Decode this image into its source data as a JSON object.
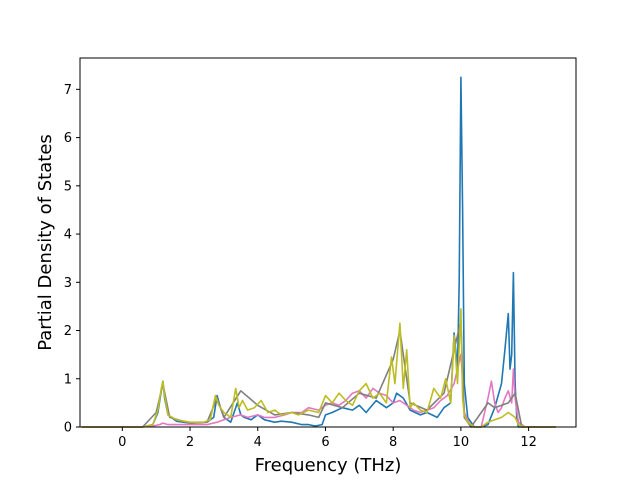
{
  "chart_data": {
    "type": "line",
    "title": "",
    "xlabel": "Frequency (THz)",
    "ylabel": "Partial Density of States",
    "xlim": [
      -1.25,
      13.4
    ],
    "ylim": [
      0,
      7.65
    ],
    "xticks": [
      0,
      2,
      4,
      6,
      8,
      10,
      12
    ],
    "yticks": [
      0,
      1,
      2,
      3,
      4,
      5,
      6,
      7
    ],
    "grid": false,
    "legend": "none",
    "series": [
      {
        "color": "#1f77b4",
        "x": [
          -1.2,
          0.6,
          0.9,
          1.05,
          1.15,
          1.2,
          1.25,
          1.35,
          1.6,
          2.0,
          2.5,
          2.7,
          2.8,
          2.9,
          3.0,
          3.2,
          3.4,
          3.5,
          3.6,
          3.8,
          4.0,
          4.2,
          4.5,
          4.7,
          5.0,
          5.3,
          5.5,
          5.7,
          5.9,
          6.0,
          6.2,
          6.5,
          6.8,
          7.0,
          7.2,
          7.5,
          7.8,
          8.0,
          8.1,
          8.3,
          8.5,
          8.8,
          9.0,
          9.3,
          9.5,
          9.7,
          9.8,
          9.9,
          9.95,
          10.0,
          10.05,
          10.1,
          10.2,
          10.4,
          10.6,
          10.8,
          11.0,
          11.2,
          11.3,
          11.4,
          11.45,
          11.5,
          11.55,
          11.6,
          11.65,
          11.7,
          11.9,
          12.8
        ],
        "y": [
          0,
          0,
          0.05,
          0.3,
          0.75,
          0.95,
          0.6,
          0.25,
          0.12,
          0.08,
          0.1,
          0.2,
          0.65,
          0.4,
          0.2,
          0.1,
          0.5,
          0.25,
          0.2,
          0.15,
          0.25,
          0.15,
          0.1,
          0.12,
          0.1,
          0.05,
          0.05,
          0.02,
          0.05,
          0.25,
          0.3,
          0.4,
          0.35,
          0.45,
          0.3,
          0.55,
          0.4,
          0.5,
          0.7,
          0.6,
          0.35,
          0.25,
          0.3,
          0.2,
          0.4,
          0.5,
          1.95,
          1.2,
          3.0,
          7.25,
          4.5,
          0.9,
          0.2,
          0,
          0,
          0.05,
          0.4,
          0.9,
          1.6,
          2.35,
          1.2,
          1.5,
          3.2,
          0.9,
          0.2,
          0,
          0,
          0
        ]
      },
      {
        "color": "#e377c2",
        "x": [
          -1.2,
          0.6,
          0.9,
          1.1,
          1.2,
          1.35,
          1.6,
          2.0,
          2.5,
          2.8,
          3.0,
          3.2,
          3.5,
          3.7,
          4.0,
          4.2,
          4.5,
          4.8,
          5.0,
          5.3,
          5.5,
          5.8,
          6.0,
          6.2,
          6.4,
          6.6,
          6.8,
          7.0,
          7.2,
          7.4,
          7.6,
          7.8,
          8.0,
          8.2,
          8.4,
          8.6,
          8.8,
          9.0,
          9.2,
          9.4,
          9.6,
          9.8,
          9.9,
          10.0,
          10.05,
          10.1,
          10.3,
          10.6,
          10.8,
          10.9,
          11.0,
          11.1,
          11.2,
          11.3,
          11.4,
          11.5,
          11.55,
          11.6,
          11.7,
          11.9,
          12.8
        ],
        "y": [
          0,
          0,
          0.02,
          0.05,
          0.08,
          0.05,
          0.05,
          0.05,
          0.05,
          0.1,
          0.15,
          0.2,
          0.25,
          0.2,
          0.25,
          0.2,
          0.2,
          0.25,
          0.3,
          0.3,
          0.4,
          0.35,
          0.45,
          0.5,
          0.45,
          0.55,
          0.7,
          0.75,
          0.6,
          0.8,
          0.7,
          0.65,
          0.5,
          0.55,
          0.45,
          0.35,
          0.3,
          0.35,
          0.4,
          0.55,
          0.65,
          0.9,
          1.2,
          1.5,
          1.0,
          0.3,
          0,
          0,
          0.6,
          0.95,
          0.5,
          0.3,
          0.4,
          0.6,
          0.75,
          0.5,
          1.2,
          0.6,
          0.1,
          0,
          0
        ]
      },
      {
        "color": "#7f7f7f",
        "x": [
          -1.2,
          0.6,
          1.0,
          1.2,
          1.4,
          2.0,
          2.5,
          2.8,
          3.0,
          3.5,
          4.0,
          4.5,
          5.0,
          5.5,
          5.8,
          6.0,
          6.5,
          7.0,
          7.5,
          8.0,
          8.2,
          8.5,
          9.0,
          9.5,
          9.8,
          10.0,
          10.1,
          10.3,
          10.8,
          11.0,
          11.4,
          11.6,
          11.8,
          12.8
        ],
        "y": [
          0,
          0,
          0.3,
          0.9,
          0.2,
          0.08,
          0.1,
          0.6,
          0.2,
          0.75,
          0.45,
          0.25,
          0.3,
          0.25,
          0.2,
          0.5,
          0.4,
          0.7,
          0.6,
          1.4,
          2.0,
          0.5,
          0.35,
          0.7,
          1.6,
          2.2,
          0.2,
          0,
          0.5,
          0.4,
          0.5,
          0.7,
          0,
          0
        ]
      },
      {
        "color": "#bcbd22",
        "x": [
          -1.2,
          0.6,
          0.9,
          1.05,
          1.15,
          1.2,
          1.25,
          1.35,
          1.6,
          2.0,
          2.4,
          2.6,
          2.75,
          2.85,
          3.0,
          3.2,
          3.35,
          3.45,
          3.55,
          3.7,
          3.9,
          4.1,
          4.3,
          4.5,
          4.7,
          5.0,
          5.2,
          5.5,
          5.8,
          6.0,
          6.2,
          6.4,
          6.6,
          6.8,
          7.0,
          7.2,
          7.4,
          7.6,
          7.8,
          7.95,
          8.05,
          8.2,
          8.3,
          8.4,
          8.5,
          8.6,
          8.8,
          9.0,
          9.2,
          9.4,
          9.55,
          9.7,
          9.8,
          9.9,
          10.0,
          10.05,
          10.1,
          10.2,
          10.4,
          10.6,
          10.8,
          11.0,
          11.2,
          11.4,
          11.5,
          11.6,
          11.7,
          11.9,
          12.8
        ],
        "y": [
          0,
          0,
          0.05,
          0.35,
          0.8,
          0.95,
          0.65,
          0.25,
          0.15,
          0.1,
          0.1,
          0.15,
          0.65,
          0.45,
          0.3,
          0.2,
          0.8,
          0.4,
          0.55,
          0.35,
          0.4,
          0.55,
          0.3,
          0.35,
          0.25,
          0.3,
          0.25,
          0.35,
          0.3,
          0.65,
          0.5,
          0.7,
          0.55,
          0.45,
          0.75,
          0.9,
          0.6,
          0.7,
          0.5,
          1.45,
          0.9,
          2.15,
          0.8,
          1.6,
          0.4,
          0.5,
          0.35,
          0.3,
          0.8,
          0.6,
          1.0,
          0.5,
          1.9,
          0.9,
          2.45,
          0.6,
          0.25,
          0.1,
          0,
          0,
          0.1,
          0.15,
          0.2,
          0.3,
          0.25,
          0.2,
          0.05,
          0,
          0
        ]
      }
    ]
  }
}
